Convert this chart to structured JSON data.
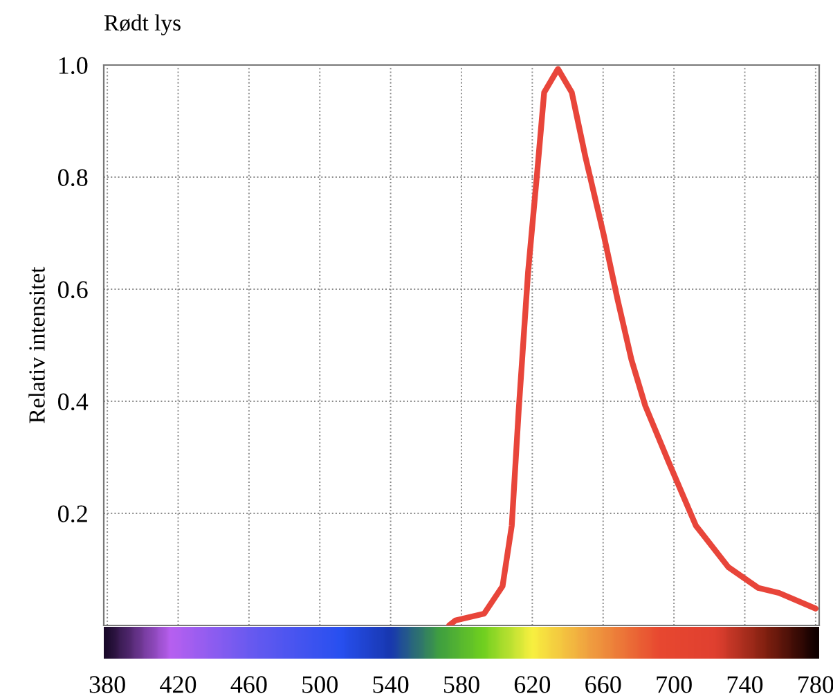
{
  "chart_data": {
    "type": "line",
    "title": "Rødt lys",
    "ylabel": "Relativ intensitet",
    "x": [
      573,
      576.6,
      592.8,
      603.2,
      608.4,
      612.3,
      617.6,
      622.8,
      626.7,
      634.5,
      642.3,
      650,
      660.4,
      668.2,
      676,
      683.8,
      696.8,
      712.4,
      730.7,
      747.6,
      759.3,
      780
    ],
    "series": [
      {
        "color": "#e8453a",
        "values": [
          0.0,
          0.009,
          0.021,
          0.07,
          0.178,
          0.383,
          0.63,
          0.81,
          0.951,
          0.993,
          0.951,
          0.836,
          0.696,
          0.581,
          0.474,
          0.392,
          0.293,
          0.178,
          0.104,
          0.067,
          0.058,
          0.03
        ]
      }
    ],
    "xlim": [
      378,
      782
    ],
    "ylim": [
      0,
      1
    ],
    "xticks": [
      380,
      420,
      460,
      500,
      540,
      580,
      620,
      660,
      700,
      740,
      780
    ],
    "yticks": [
      0.2,
      0.4,
      0.6,
      0.8,
      {
        "value": 1.0,
        "label": "1.0"
      }
    ],
    "grid": true,
    "marker": "none",
    "line_style": "solid",
    "legend": false
  }
}
